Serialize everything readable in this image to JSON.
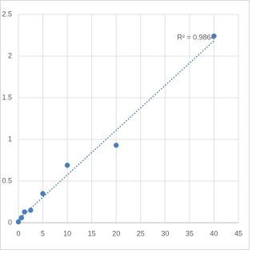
{
  "chart_data": {
    "type": "scatter",
    "annotation": "R² = 0.9864",
    "series": [
      {
        "color": "#4a7ebb",
        "x": [
          0,
          0.625,
          1.25,
          2.5,
          5,
          10,
          20,
          40
        ],
        "values": [
          0.01,
          0.06,
          0.13,
          0.15,
          0.35,
          0.69,
          0.93,
          2.24
        ]
      }
    ],
    "trendline": true,
    "xlim": [
      0,
      45
    ],
    "xticks": [
      0,
      5,
      10,
      15,
      20,
      25,
      30,
      35,
      40,
      45
    ],
    "ylim": [
      0,
      2.5
    ],
    "yticks": [
      0,
      0.5,
      1,
      1.5,
      2,
      2.5
    ],
    "grid": true
  }
}
